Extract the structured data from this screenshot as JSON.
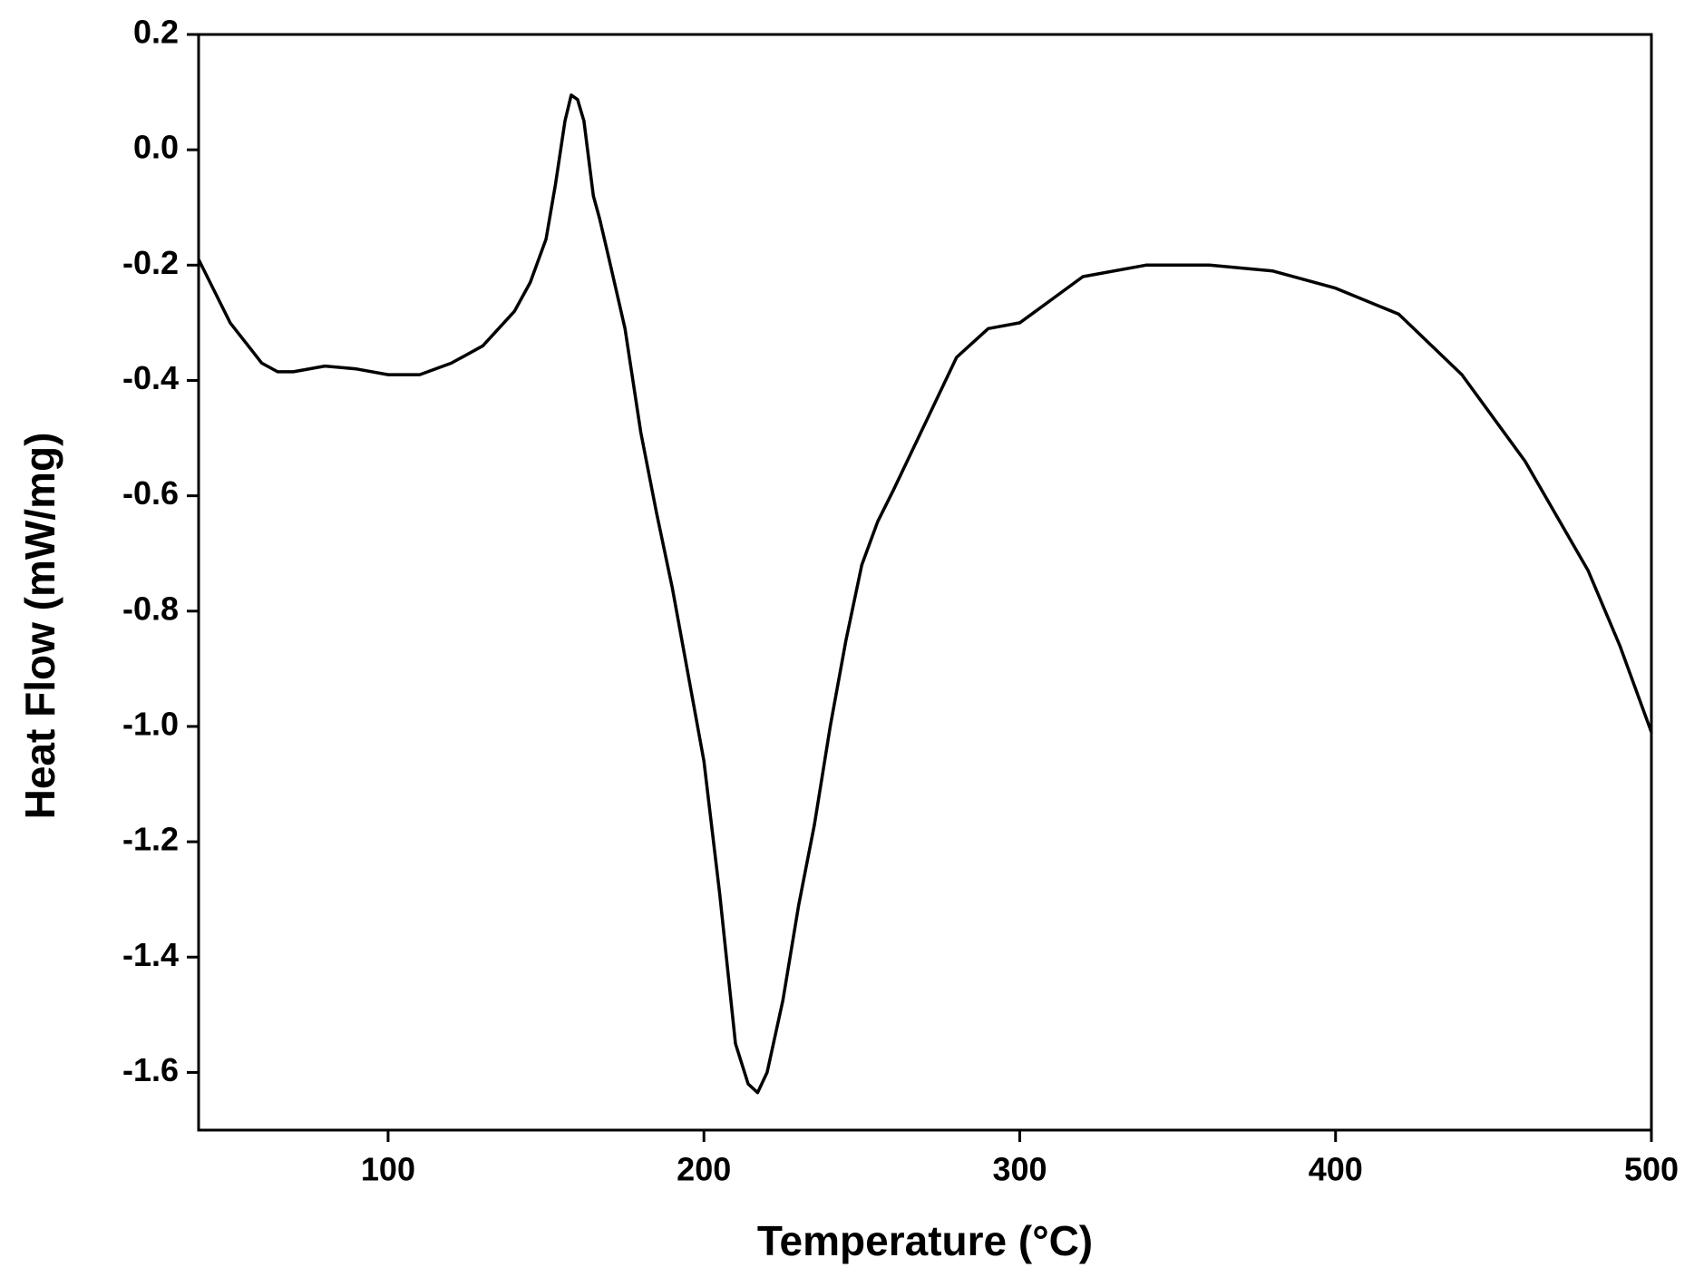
{
  "chart_data": {
    "type": "line",
    "xlabel": "Temperature (°C)",
    "ylabel": "Heat Flow (mW/mg)",
    "x": [
      40,
      50,
      60,
      65,
      70,
      80,
      90,
      100,
      110,
      120,
      130,
      140,
      145,
      150,
      153,
      156,
      158,
      160,
      162,
      165,
      167,
      170,
      175,
      180,
      185,
      190,
      195,
      200,
      205,
      210,
      214,
      217,
      220,
      225,
      230,
      235,
      240,
      245,
      250,
      255,
      260,
      270,
      280,
      290,
      300,
      310,
      320,
      340,
      360,
      380,
      400,
      420,
      440,
      460,
      480,
      490,
      500
    ],
    "series": [
      {
        "name": "Heat Flow",
        "color": "#000000",
        "values": [
          -0.19,
          -0.3,
          -0.37,
          -0.385,
          -0.385,
          -0.375,
          -0.38,
          -0.39,
          -0.39,
          -0.37,
          -0.34,
          -0.28,
          -0.23,
          -0.155,
          -0.06,
          0.05,
          0.095,
          0.087,
          0.05,
          -0.08,
          -0.12,
          -0.19,
          -0.31,
          -0.49,
          -0.63,
          -0.76,
          -0.91,
          -1.06,
          -1.29,
          -1.55,
          -1.62,
          -1.635,
          -1.6,
          -1.475,
          -1.31,
          -1.17,
          -1.0,
          -0.85,
          -0.72,
          -0.645,
          -0.59,
          -0.475,
          -0.36,
          -0.31,
          -0.3,
          -0.26,
          -0.22,
          -0.2,
          -0.2,
          -0.21,
          -0.24,
          -0.285,
          -0.39,
          -0.54,
          -0.73,
          -0.86,
          -1.01
        ]
      }
    ],
    "xlim": [
      40,
      500
    ],
    "xticks": [
      100,
      200,
      300,
      400,
      500
    ],
    "ylim": [
      -1.7,
      0.2
    ],
    "yticks": [
      0.2,
      {
        "value": 0,
        "label": "0.0"
      },
      -0.2,
      -0.4,
      -0.6,
      -0.8,
      {
        "value": -1,
        "label": "-1.0"
      },
      -1.2,
      -1.4,
      -1.6
    ]
  }
}
